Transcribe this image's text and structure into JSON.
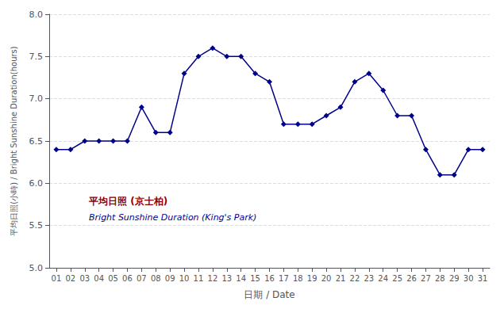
{
  "chart_data": {
    "type": "line",
    "x_label": "日期 / Date",
    "y_label": "平均日照(小時) / Bright Sunshine Duration(hours)",
    "annotations": [
      {
        "text": "平均日照 (京士柏)",
        "color": "#8B0000"
      },
      {
        "text": "Bright Sunshine Duration (King's Park)",
        "color": "#00008B"
      }
    ],
    "x": [
      1,
      2,
      3,
      4,
      5,
      6,
      7,
      8,
      9,
      10,
      11,
      12,
      13,
      14,
      15,
      16,
      17,
      18,
      19,
      20,
      21,
      22,
      23,
      24,
      25,
      26,
      27,
      28,
      29,
      30,
      31
    ],
    "values": [
      6.4,
      6.4,
      6.5,
      6.5,
      6.5,
      6.5,
      6.9,
      6.6,
      6.6,
      7.3,
      7.5,
      7.6,
      7.5,
      7.5,
      7.3,
      7.2,
      6.7,
      6.7,
      6.7,
      6.8,
      6.9,
      7.2,
      7.3,
      7.1,
      6.8,
      6.8,
      6.4,
      6.1,
      6.1,
      6.4,
      6.4
    ],
    "color": "#00008B",
    "marker": "diamond",
    "xlim": [
      0.5,
      31.5
    ],
    "xticks": [
      {
        "value": 1,
        "label": "01"
      },
      {
        "value": 2,
        "label": "02"
      },
      {
        "value": 3,
        "label": "03"
      },
      {
        "value": 4,
        "label": "04"
      },
      {
        "value": 5,
        "label": "05"
      },
      {
        "value": 6,
        "label": "06"
      },
      {
        "value": 7,
        "label": "07"
      },
      {
        "value": 8,
        "label": "08"
      },
      {
        "value": 9,
        "label": "09"
      },
      10,
      11,
      12,
      13,
      14,
      15,
      16,
      17,
      18,
      19,
      20,
      21,
      22,
      23,
      24,
      25,
      26,
      27,
      28,
      29,
      30,
      31
    ],
    "ylim": [
      5.0,
      8.0
    ],
    "yticks": [
      {
        "value": 5,
        "label": "5.0"
      },
      5.5,
      {
        "value": 6,
        "label": "6.0"
      },
      6.5,
      {
        "value": 7,
        "label": "7.0"
      },
      7.5,
      {
        "value": 8,
        "label": "8.0"
      }
    ],
    "grid": true
  }
}
